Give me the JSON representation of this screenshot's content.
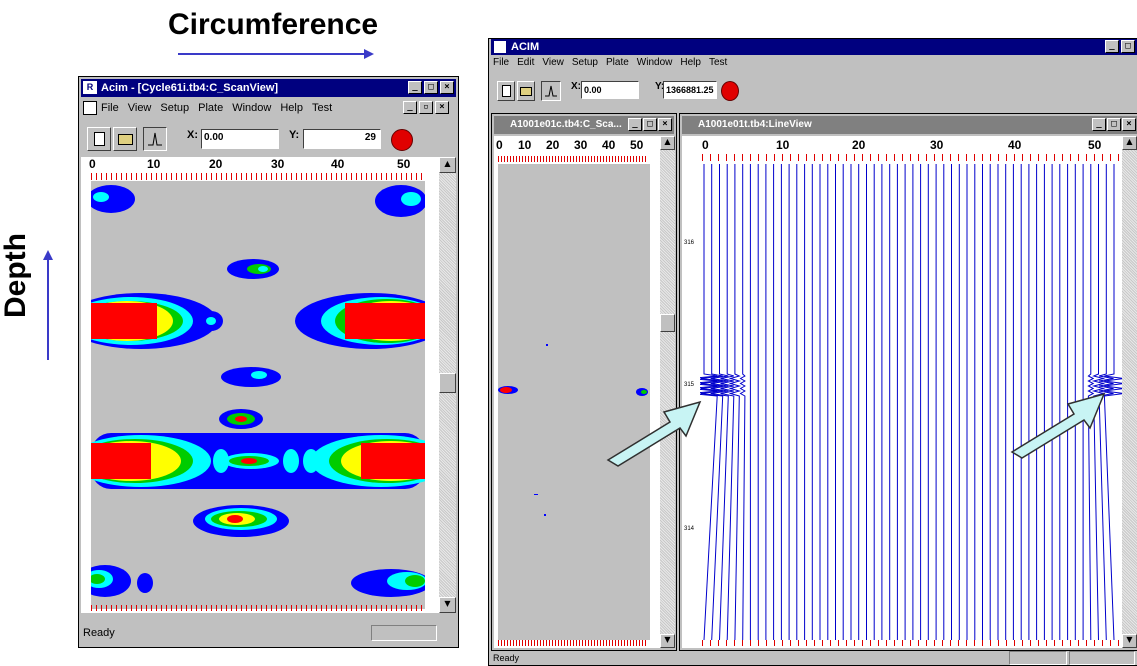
{
  "annotations": {
    "circumference": "Circumference",
    "depth": "Depth"
  },
  "left_window": {
    "title": "Acim - [Cycle61i.tb4:C_ScanView]",
    "menu": [
      "File",
      "View",
      "Setup",
      "Plate",
      "Window",
      "Help",
      "Test"
    ],
    "x_label": "X:",
    "x_value": "0.00",
    "y_label": "Y:",
    "y_value": "29",
    "ruler_ticks": [
      "0",
      "10",
      "20",
      "30",
      "40",
      "50"
    ],
    "status": "Ready"
  },
  "right_app": {
    "title": "ACIM",
    "menu": [
      "File",
      "Edit",
      "View",
      "Setup",
      "Plate",
      "Window",
      "Help",
      "Test"
    ],
    "x_label": "X:",
    "x_value": "0.00",
    "y_label": "Y:",
    "y_value": "1366881.25",
    "status": "Ready",
    "scan_window": {
      "title": "A1001e01c.tb4:C_Sca...",
      "ruler_ticks": [
        "0",
        "10",
        "20",
        "30",
        "40",
        "50"
      ]
    },
    "line_window": {
      "title": "A1001e01t.tb4:LineView",
      "ruler_ticks": [
        "0",
        "10",
        "20",
        "30",
        "40",
        "50"
      ],
      "depth_labels": [
        "316",
        "315",
        "314"
      ]
    }
  },
  "colors": {
    "titlebar_active": "#00007f",
    "scan_background": "#c0c0c0",
    "trace_color": "#0000cc",
    "arrow_fill": "#c8f4f4",
    "signal_red": "#ff0000",
    "signal_yellow": "#ffff00",
    "signal_green": "#00cc00",
    "signal_cyan": "#00ffff",
    "signal_blue": "#0000ff"
  },
  "icons": [
    "new-file-icon",
    "open-folder-icon",
    "signal-icon",
    "record-icon",
    "app-icon",
    "scroll-up-icon",
    "scroll-down-icon",
    "arrow-annotation-icon"
  ]
}
